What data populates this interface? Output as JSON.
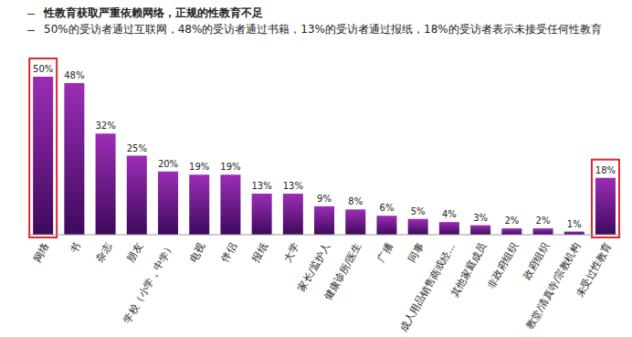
{
  "chart_data": {
    "type": "bar",
    "annotations": [
      "性教育获取严重依赖网络，正规的性教育不足",
      "50%的受访者通过互联网，48%的受访者通过书籍，13%的受访者通过报纸，18%的受访者表示未接受任何性教育"
    ],
    "categories": [
      "网络",
      "书",
      "杂志",
      "朋友",
      "学校（小学，中学）",
      "电视",
      "伴侣",
      "报纸",
      "大学",
      "家长/监护人",
      "健康诊所/医生",
      "广播",
      "同事",
      "成人用品销售商或经...",
      "其他家庭成员",
      "非政府组织",
      "政府组织",
      "教堂/清真寺/宗教机构",
      "未受过性教育"
    ],
    "values": [
      50,
      48,
      32,
      25,
      20,
      19,
      19,
      13,
      13,
      9,
      8,
      6,
      5,
      4,
      3,
      2,
      2,
      1,
      18
    ],
    "value_labels": [
      "50%",
      "48%",
      "32%",
      "25%",
      "20%",
      "19%",
      "19%",
      "13%",
      "13%",
      "9%",
      "8%",
      "6%",
      "5%",
      "4%",
      "3%",
      "2%",
      "2%",
      "1%",
      "18%"
    ],
    "color": "#9c2db5",
    "data_labels": true,
    "tick_labels": "x",
    "grid": false
  }
}
